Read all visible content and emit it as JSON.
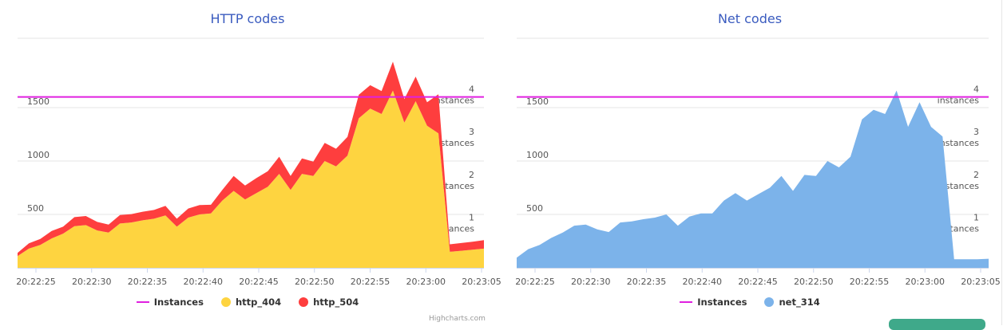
{
  "credit": "Highcharts.com",
  "chart_data": [
    {
      "id": "left",
      "type": "area",
      "stacked": true,
      "title": "HTTP codes",
      "x_ticks": [
        "20:22:25",
        "20:22:30",
        "20:22:35",
        "20:22:40",
        "20:22:45",
        "20:22:50",
        "20:22:55",
        "20:23:00",
        "20:23:05"
      ],
      "y_ticks": [
        {
          "value": 500,
          "label": "500"
        },
        {
          "value": 1000,
          "label": "1000"
        },
        {
          "value": 1500,
          "label": "1500"
        }
      ],
      "ylim": [
        0,
        2000
      ],
      "secondary_ticks": [
        {
          "value": 1,
          "line1": "1",
          "line2": "instances"
        },
        {
          "value": 2,
          "line1": "2",
          "line2": "instances"
        },
        {
          "value": 3,
          "line1": "3",
          "line2": "instances"
        },
        {
          "value": 4,
          "line1": "4",
          "line2": "instances"
        }
      ],
      "secondary_ylim": [
        0,
        5
      ],
      "instances": {
        "name": "Instances",
        "value": 4,
        "color": "#e020e0"
      },
      "series": [
        {
          "name": "http_404",
          "color": "#fed440",
          "values": [
            110,
            180,
            215,
            275,
            320,
            390,
            400,
            350,
            330,
            415,
            425,
            445,
            460,
            490,
            385,
            470,
            500,
            510,
            630,
            720,
            640,
            700,
            760,
            880,
            730,
            880,
            860,
            1000,
            950,
            1050,
            1400,
            1490,
            1440,
            1660,
            1360,
            1560,
            1330,
            1260,
            150,
            160,
            170,
            180
          ]
        },
        {
          "name": "http_504",
          "color": "#fe3e3e",
          "values": [
            30,
            50,
            55,
            70,
            65,
            85,
            85,
            80,
            75,
            80,
            78,
            80,
            82,
            90,
            75,
            85,
            88,
            80,
            100,
            140,
            130,
            140,
            145,
            160,
            130,
            145,
            135,
            170,
            165,
            175,
            220,
            220,
            215,
            270,
            220,
            230,
            220,
            365,
            70,
            72,
            75,
            80
          ]
        }
      ]
    },
    {
      "id": "right",
      "type": "area",
      "stacked": false,
      "title": "Net codes",
      "x_ticks": [
        "20:22:25",
        "20:22:30",
        "20:22:35",
        "20:22:40",
        "20:22:45",
        "20:22:50",
        "20:22:55",
        "20:23:00",
        "20:23:05"
      ],
      "y_ticks": [
        {
          "value": 500,
          "label": "500"
        },
        {
          "value": 1000,
          "label": "1000"
        },
        {
          "value": 1500,
          "label": "1500"
        }
      ],
      "ylim": [
        0,
        2000
      ],
      "secondary_ticks": [
        {
          "value": 1,
          "line1": "1",
          "line2": "instances"
        },
        {
          "value": 2,
          "line1": "2",
          "line2": "instances"
        },
        {
          "value": 3,
          "line1": "3",
          "line2": "instances"
        },
        {
          "value": 4,
          "line1": "4",
          "line2": "instances"
        }
      ],
      "secondary_ylim": [
        0,
        5
      ],
      "instances": {
        "name": "Instances",
        "value": 4,
        "color": "#e020e0"
      },
      "series": [
        {
          "name": "net_314",
          "color": "#7cb3ea",
          "values": [
            95,
            175,
            215,
            280,
            330,
            395,
            405,
            360,
            335,
            425,
            435,
            455,
            470,
            500,
            395,
            480,
            510,
            510,
            630,
            700,
            630,
            690,
            750,
            860,
            720,
            870,
            860,
            1000,
            940,
            1040,
            1390,
            1480,
            1440,
            1660,
            1320,
            1550,
            1320,
            1230,
            80,
            80,
            80,
            85
          ]
        }
      ]
    }
  ]
}
